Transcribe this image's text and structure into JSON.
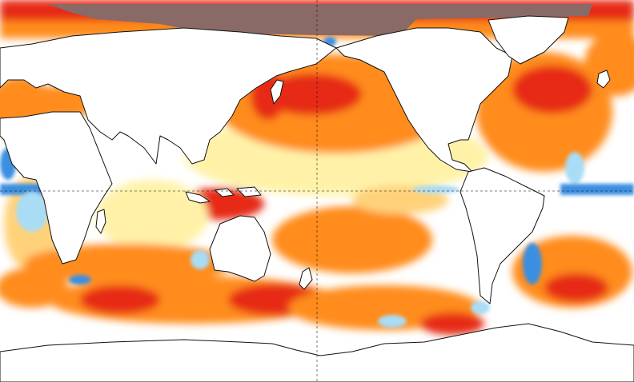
{
  "map": {
    "type": "sea-surface-temperature-anomaly",
    "projection": "equirectangular",
    "center_longitude": 180,
    "graticule": {
      "style": "dashed",
      "visible": true
    },
    "colors": {
      "land": "#ffffff",
      "coast": "#111111",
      "ocean_neutral": "#ffffff",
      "light_warm": "#fff2a8",
      "pale_orange": "#ffd27a",
      "orange": "#ff8c1a",
      "red": "#e62a12",
      "dark_red": "#b5120a",
      "sea_ice": "#8a6a66",
      "light_blue": "#a9dcf5",
      "blue": "#3a8fe0",
      "dark_blue": "#1f5fc0"
    }
  }
}
